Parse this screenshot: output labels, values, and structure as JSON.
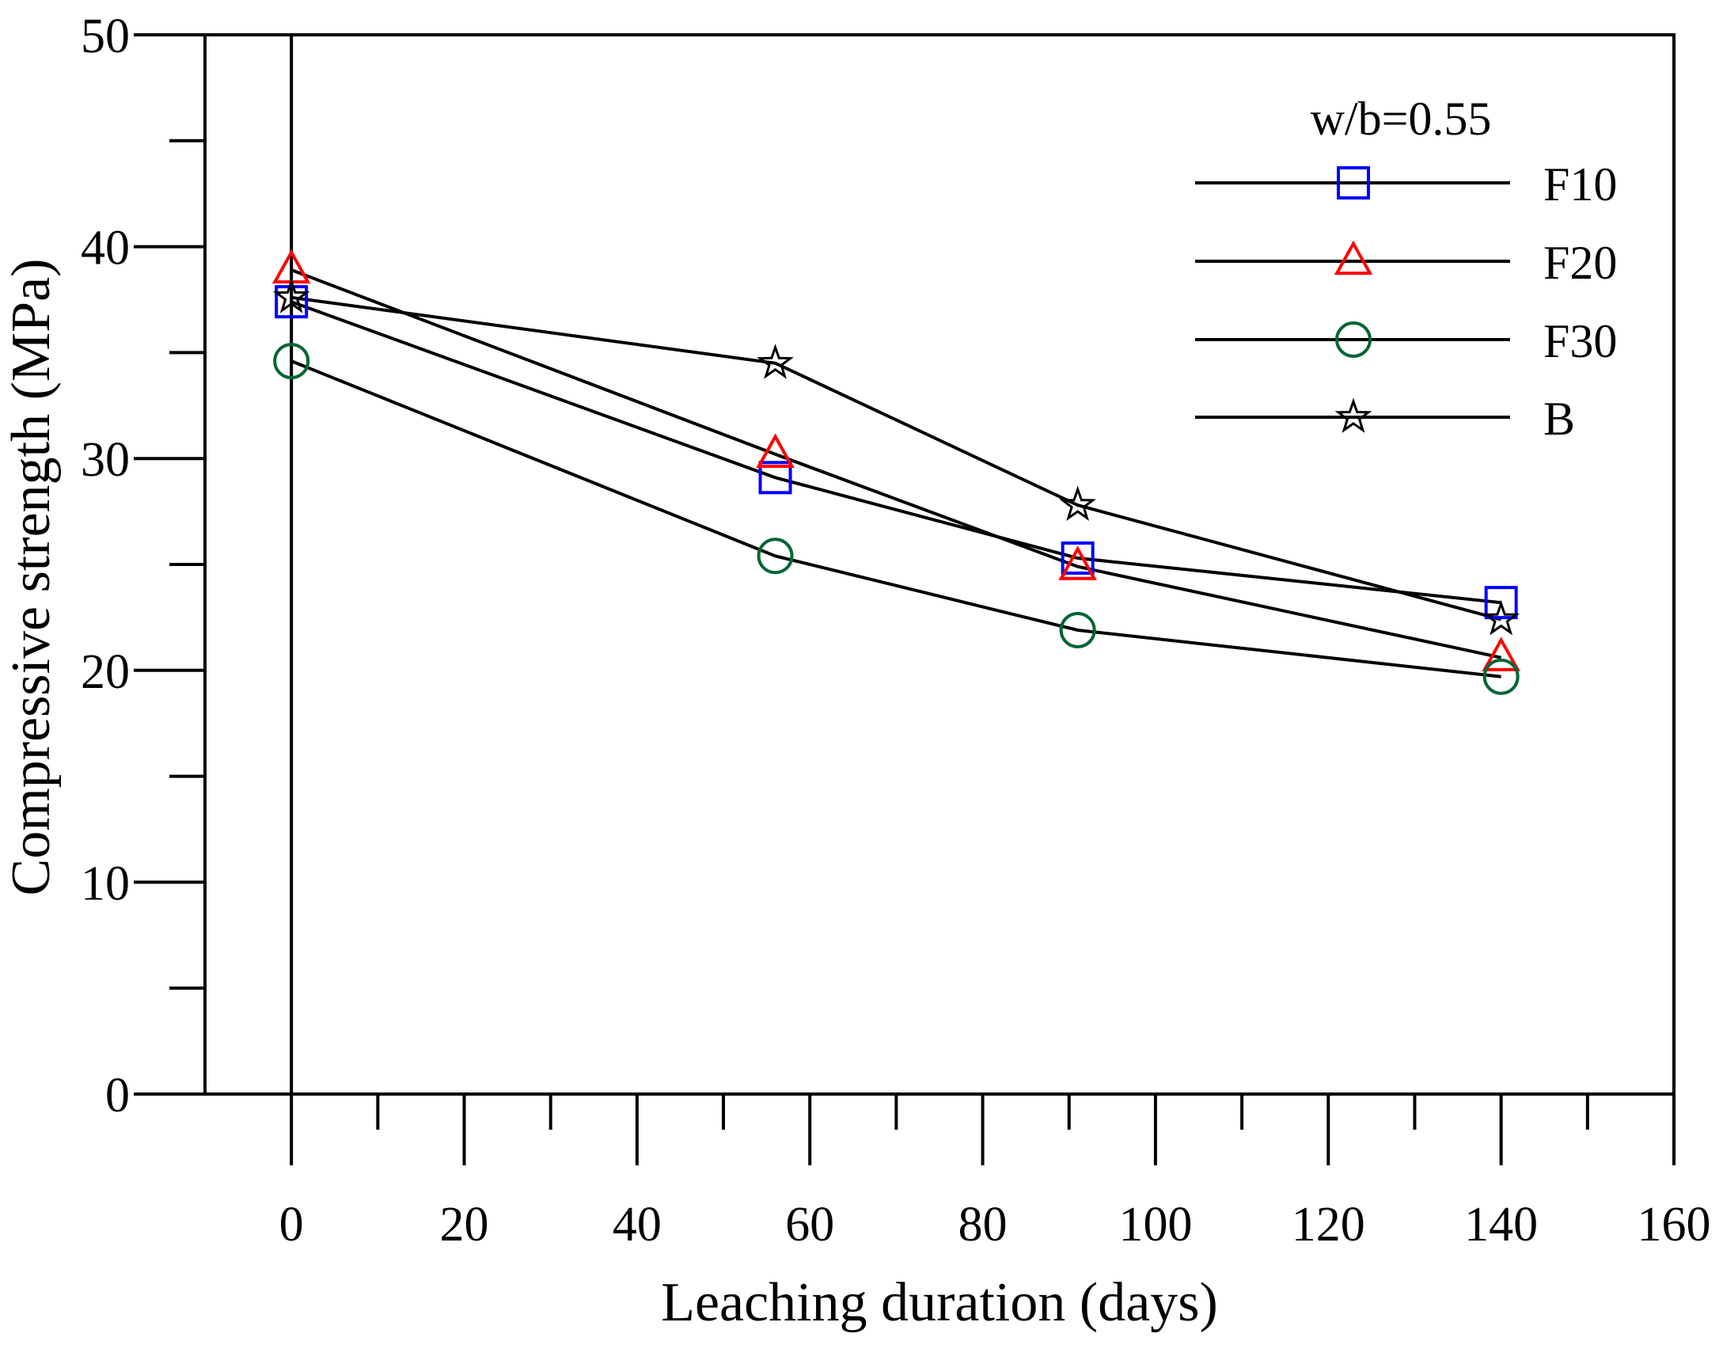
{
  "chart_data": {
    "type": "line",
    "title": "",
    "xlabel": "Leaching duration (days)",
    "ylabel": "Compressive strength (MPa)",
    "xlim": [
      -10,
      160
    ],
    "ylim": [
      0,
      50
    ],
    "x_ticks": [
      0,
      20,
      40,
      60,
      80,
      100,
      120,
      140,
      160
    ],
    "x_tick_labels": [
      "0",
      "20",
      "40",
      "60",
      "80",
      "100",
      "120",
      "140",
      "160"
    ],
    "y_ticks": [
      0,
      10,
      20,
      30,
      40,
      50
    ],
    "y_tick_labels": [
      "0",
      "10",
      "20",
      "30",
      "40",
      "50"
    ],
    "legend_title": "w/b=0.55",
    "legend_position": "top-right",
    "x": [
      0,
      56,
      91,
      140
    ],
    "series": [
      {
        "name": "F10",
        "marker": "square",
        "color": "#0000ff",
        "values": [
          37.4,
          29.1,
          25.3,
          23.2
        ]
      },
      {
        "name": "F20",
        "marker": "triangle",
        "color": "#ff0000",
        "values": [
          38.9,
          30.2,
          24.9,
          20.6
        ]
      },
      {
        "name": "F30",
        "marker": "circle",
        "color": "#006633",
        "values": [
          34.6,
          25.4,
          21.9,
          19.7
        ]
      },
      {
        "name": "B",
        "marker": "star",
        "color": "#000000",
        "values": [
          37.6,
          34.5,
          27.8,
          22.4
        ]
      }
    ]
  }
}
